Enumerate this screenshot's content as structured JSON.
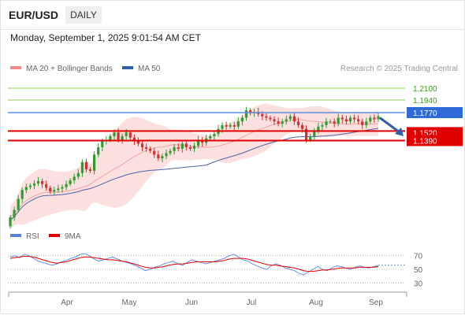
{
  "header": {
    "symbol": "EUR/USD",
    "period_button": "DAILY"
  },
  "timestamp": "Monday, September 1, 2025 9:01:54 AM CET",
  "legend": {
    "items": [
      {
        "label": "MA 20 + Bollinger Bands",
        "color": "#f08a8a"
      },
      {
        "label": "MA 50",
        "color": "#2e5fa8"
      }
    ],
    "credit": "Research © 2025 Trading Central"
  },
  "rsi_legend": {
    "items": [
      {
        "label": "RSI",
        "color": "#5b7fd9"
      },
      {
        "label": "9MA",
        "color": "#e00000"
      }
    ]
  },
  "colors": {
    "up": "#2e9c2e",
    "down": "#d23030",
    "band": "#fbd6d6",
    "ma20": "#f2a3a3",
    "ma50": "#5060a8",
    "green_line": "#8cc85a",
    "blue_line": "#5a8fe0",
    "red_line": "#e00000",
    "arrow": "#2e5fa8"
  },
  "chart_data": [
    {
      "type": "candlestick",
      "pair": "EUR/USD",
      "timeframe": "Daily",
      "ylim": [
        1.02,
        1.225
      ],
      "x_labels": [
        "Apr",
        "May",
        "Jun",
        "Jul",
        "Aug",
        "Sep"
      ],
      "levels": [
        {
          "value": 1.21,
          "label": "1.2100",
          "kind": "resistance"
        },
        {
          "value": 1.194,
          "label": "1.1940",
          "kind": "resistance"
        },
        {
          "value": 1.177,
          "label": "1.1770",
          "kind": "pivot"
        },
        {
          "value": 1.152,
          "label": "1.1520",
          "kind": "support"
        },
        {
          "value": 1.139,
          "label": "1.1390",
          "kind": "support"
        }
      ],
      "closes": [
        1.035,
        1.045,
        1.06,
        1.072,
        1.076,
        1.078,
        1.081,
        1.084,
        1.08,
        1.075,
        1.07,
        1.072,
        1.074,
        1.076,
        1.08,
        1.085,
        1.09,
        1.095,
        1.11,
        1.1,
        1.098,
        1.12,
        1.13,
        1.138,
        1.14,
        1.145,
        1.15,
        1.14,
        1.145,
        1.15,
        1.143,
        1.138,
        1.135,
        1.13,
        1.128,
        1.125,
        1.12,
        1.115,
        1.118,
        1.122,
        1.125,
        1.13,
        1.128,
        1.135,
        1.13,
        1.128,
        1.132,
        1.14,
        1.136,
        1.142,
        1.145,
        1.148,
        1.155,
        1.16,
        1.158,
        1.16,
        1.158,
        1.165,
        1.17,
        1.18,
        1.176,
        1.178,
        1.175,
        1.172,
        1.17,
        1.168,
        1.165,
        1.162,
        1.165,
        1.168,
        1.172,
        1.165,
        1.16,
        1.155,
        1.14,
        1.145,
        1.152,
        1.158,
        1.16,
        1.165,
        1.165,
        1.162,
        1.17,
        1.168,
        1.165,
        1.17,
        1.168,
        1.165,
        1.16,
        1.165,
        1.17,
        1.168,
        1.172
      ]
    },
    {
      "type": "line",
      "title": "RSI",
      "series": [
        {
          "name": "RSI",
          "values": [
            68,
            70,
            67,
            72,
            70,
            66,
            62,
            60,
            58,
            56,
            58,
            61,
            63,
            66,
            68,
            72,
            73,
            70,
            65,
            62,
            64,
            66,
            68,
            65,
            62,
            60,
            58,
            55,
            52,
            48,
            50,
            53,
            55,
            58,
            60,
            62,
            58,
            56,
            60,
            64,
            62,
            60,
            58,
            60,
            62,
            64,
            66,
            70,
            72,
            68,
            64,
            62,
            58,
            55,
            52,
            50,
            55,
            58,
            56,
            52,
            50,
            48,
            44,
            42,
            46,
            50,
            54,
            50,
            48,
            52,
            55,
            54,
            52,
            50,
            53,
            55,
            53,
            52,
            54,
            56
          ]
        },
        {
          "name": "9MA",
          "values": [
            66,
            67,
            68,
            69,
            69,
            68,
            66,
            64,
            62,
            60,
            59,
            60,
            61,
            63,
            65,
            67,
            68,
            68,
            67,
            66,
            65,
            64,
            64,
            63,
            62,
            61,
            59,
            57,
            55,
            53,
            52,
            52,
            53,
            54,
            56,
            57,
            58,
            58,
            59,
            60,
            61,
            61,
            61,
            61,
            61,
            62,
            63,
            65,
            66,
            66,
            66,
            65,
            63,
            61,
            59,
            57,
            56,
            56,
            55,
            54,
            53,
            52,
            50,
            48,
            47,
            47,
            48,
            49,
            49,
            50,
            51,
            52,
            52,
            52,
            52,
            53,
            53,
            53,
            53,
            54
          ]
        }
      ],
      "ylim": [
        20,
        80
      ],
      "y_ticks": [
        30,
        50,
        70
      ],
      "x_labels": [
        "Apr",
        "May",
        "Jun",
        "Jul",
        "Aug",
        "Sep"
      ]
    }
  ]
}
